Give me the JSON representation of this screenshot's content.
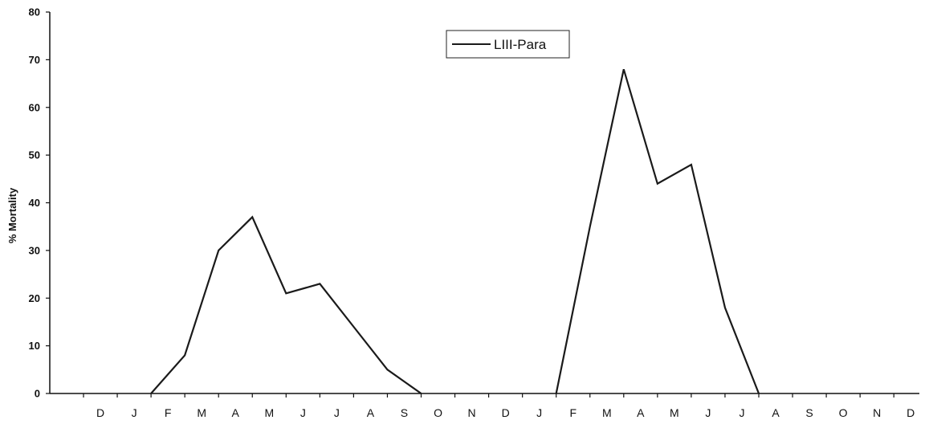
{
  "chart_data": {
    "type": "line",
    "title": "",
    "xlabel": "",
    "ylabel": "% Mortality",
    "ylim": [
      0,
      80
    ],
    "yticks": [
      "0",
      "10",
      "20",
      "30",
      "40",
      "50",
      "60",
      "70",
      "80"
    ],
    "categories": [
      "D",
      "J",
      "F",
      "M",
      "A",
      "M",
      "J",
      "J",
      "A",
      "S",
      "O",
      "N",
      "D",
      "J",
      "F",
      "M",
      "A",
      "M",
      "J",
      "J",
      "A",
      "S",
      "O",
      "N",
      "D"
    ],
    "grid": false,
    "legend": "top-center",
    "series": [
      {
        "name": "LIII-Para",
        "color": "#1a1a1a",
        "values": [
          null,
          null,
          0,
          8,
          30,
          37,
          21,
          23,
          14,
          5,
          0,
          null,
          null,
          null,
          0,
          35,
          68,
          44,
          48,
          18,
          0,
          null,
          null,
          null,
          null
        ]
      }
    ]
  }
}
